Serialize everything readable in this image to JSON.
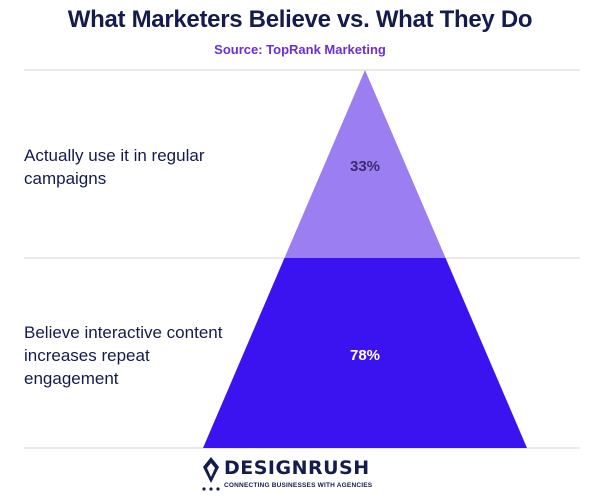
{
  "header": {
    "title": "What Marketers Believe vs. What They Do",
    "source": "Source: TopRank Marketing"
  },
  "chart_data": {
    "type": "pyramid",
    "categories": [
      "Actually use it in regular campaigns",
      "Believe interactive content increases repeat engagement"
    ],
    "values": [
      33,
      78
    ],
    "value_labels": [
      "33%",
      "78%"
    ],
    "colors": [
      "#9a7ef2",
      "#3b12f0"
    ],
    "value_label_colors": [
      "#3a2d6b",
      "#ffffff"
    ]
  },
  "brand": {
    "name": "DESIGNRUSH",
    "tagline": "CONNECTING BUSINESSES WITH AGENCIES"
  }
}
